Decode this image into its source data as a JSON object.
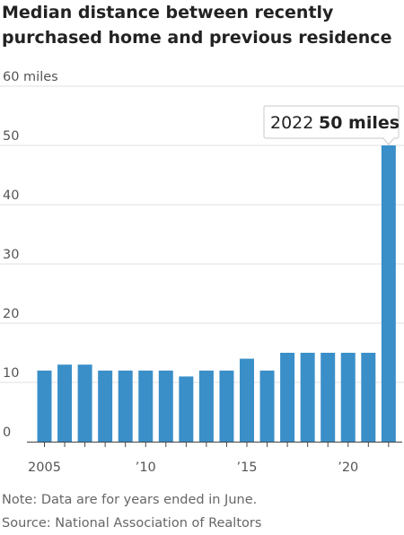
{
  "title_lines": [
    "Median distance between recently",
    "purchased home and previous residence"
  ],
  "note": "Note: Data are for years ended in June.",
  "source": "Source: National Association of Realtors",
  "colors": {
    "bar": "#3a8fc9",
    "grid": "#e2e2e2",
    "axis": "#444444"
  },
  "chart_data": {
    "type": "bar",
    "title": "Median distance between recently purchased home and previous residence",
    "ylabel": "miles",
    "unit": "miles",
    "categories": [
      "2005",
      "2006",
      "2007",
      "2008",
      "2009",
      "2010",
      "2011",
      "2012",
      "2013",
      "2014",
      "2015",
      "2016",
      "2017",
      "2018",
      "2019",
      "2020",
      "2021",
      "2022"
    ],
    "values": [
      12,
      13,
      13,
      12,
      12,
      12,
      12,
      11,
      12,
      12,
      14,
      12,
      15,
      15,
      15,
      15,
      15,
      50
    ],
    "ylim": [
      0,
      60
    ],
    "yticks": [
      0,
      10,
      20,
      30,
      40,
      50,
      60
    ],
    "ytick_labels": [
      "0",
      "10",
      "20",
      "30",
      "40",
      "50",
      "60  miles"
    ],
    "xtick_labels": [
      {
        "category": "2005",
        "label": "2005"
      },
      {
        "category": "2010",
        "label": "’10"
      },
      {
        "category": "2015",
        "label": "’15"
      },
      {
        "category": "2020",
        "label": "’20"
      }
    ],
    "grid": true,
    "annotation": {
      "category": "2022",
      "year_text": "2022",
      "value_text": "50 miles"
    }
  }
}
